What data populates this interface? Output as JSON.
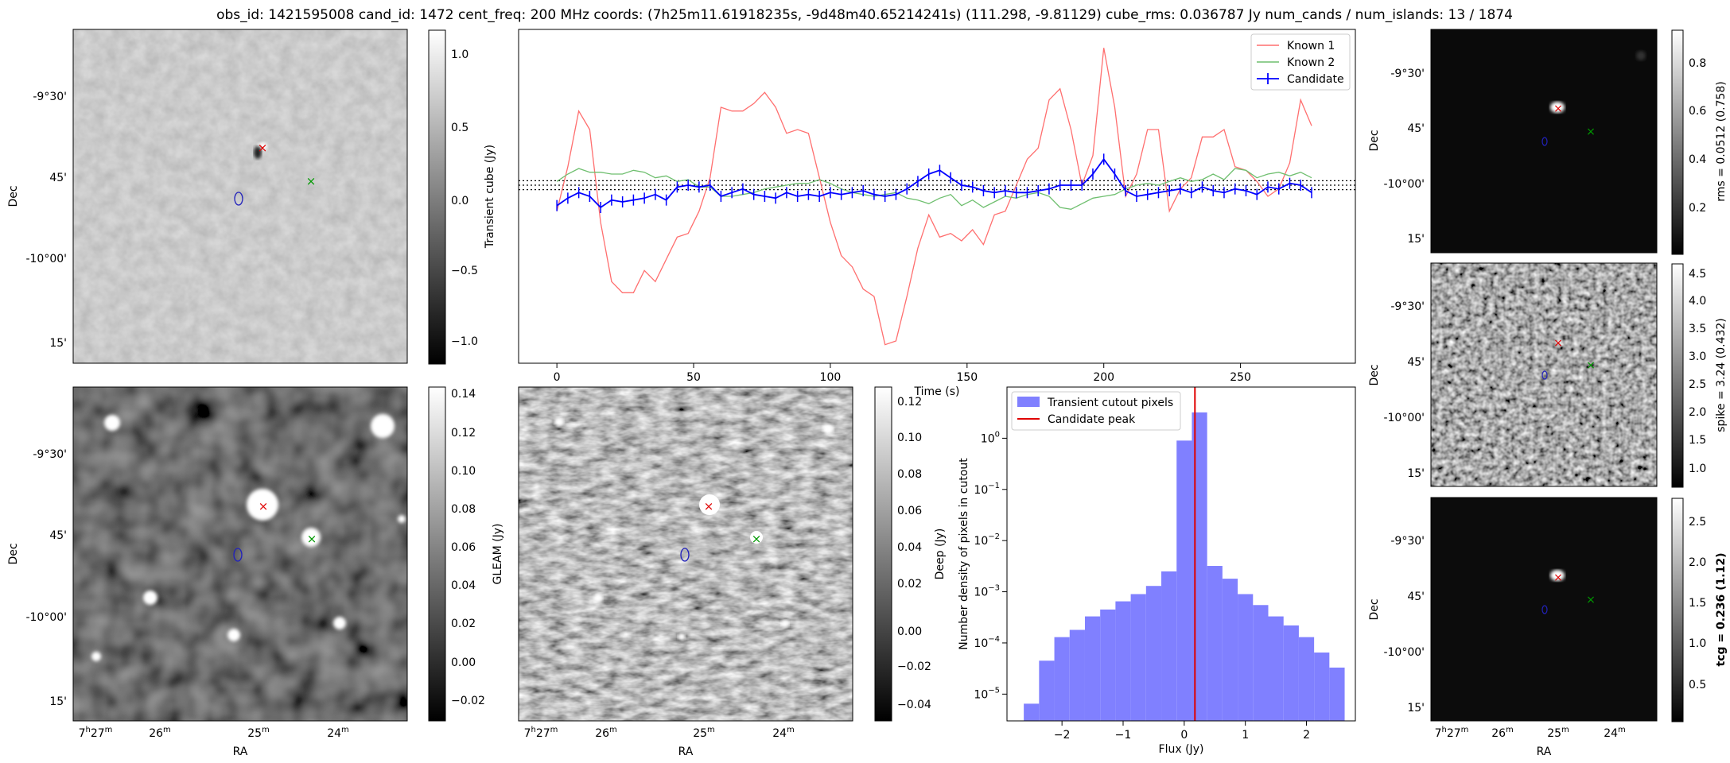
{
  "figure": {
    "title": "obs_id: 1421595008 cand_id: 1472 cent_freq: 200 MHz coords: (7h25m11.61918235s, -9d48m40.65214241s) (111.298, -9.81129) cube_rms: 0.036787 Jy num_cands / num_islands: 13 / 1874"
  },
  "colors": {
    "known1": "#ff6f6f",
    "known2": "#6fbf6f",
    "candidate": "#0000ff",
    "hist_fill": "#8080ff",
    "peak": "#e00000",
    "marker_red": "#e00000",
    "marker_green": "#009900",
    "ellipse_blue": "#2222bb"
  },
  "image_axes": {
    "dec_ticks": [
      "-9°30'",
      "45'",
      "-10°00'",
      "15'"
    ],
    "ra_ticks": [
      "7h27m",
      "26m",
      "25m",
      "24m"
    ],
    "ra_hour_parts": [
      "7",
      "27"
    ],
    "ra_min_part": "m",
    "ylabel": "Dec",
    "xlabel": "RA"
  },
  "panels": {
    "transient": {
      "colorbar_label": "Transient cube (Jy)",
      "colorbar_ticks": [
        "1.0",
        "0.5",
        "0.0",
        "−0.5",
        "−1.0"
      ]
    },
    "gleam": {
      "colorbar_label": "GLEAM (Jy)",
      "colorbar_ticks": [
        "0.14",
        "0.12",
        "0.10",
        "0.08",
        "0.06",
        "0.04",
        "0.02",
        "0.00",
        "−0.02"
      ]
    },
    "deep": {
      "colorbar_label": "Deep (Jy)",
      "colorbar_ticks": [
        "0.12",
        "0.10",
        "0.08",
        "0.06",
        "0.04",
        "0.02",
        "0.00",
        "−0.02",
        "−0.04"
      ]
    },
    "rms": {
      "colorbar_label": "rms = 0.0512 (0.758)",
      "colorbar_ticks": [
        "0.8",
        "0.6",
        "0.4",
        "0.2"
      ]
    },
    "spike": {
      "colorbar_label": "spike = 3.24 (0.432)",
      "colorbar_ticks": [
        "4.5",
        "4.0",
        "3.5",
        "3.0",
        "2.5",
        "2.0",
        "1.5",
        "1.0"
      ]
    },
    "tcg": {
      "colorbar_label": "tcg = 0.236 (1.12)",
      "colorbar_ticks": [
        "2.5",
        "2.0",
        "1.5",
        "1.0",
        "0.5"
      ]
    }
  },
  "chart_data": [
    {
      "type": "line",
      "title": "",
      "xlabel": "Time (s)",
      "ylabel": "",
      "xlim": [
        -14,
        292
      ],
      "ylim": [
        -4.8,
        4.2
      ],
      "xticks": [
        0,
        50,
        100,
        150,
        200,
        250
      ],
      "legend": [
        "Known 1",
        "Known 2",
        "Candidate"
      ],
      "legend_position": "top-right",
      "hlines": [
        0.12,
        0.0,
        -0.12
      ],
      "series": [
        {
          "name": "Known 1",
          "x": [
            0,
            4,
            8,
            12,
            16,
            20,
            24,
            28,
            32,
            36,
            40,
            44,
            48,
            52,
            56,
            60,
            64,
            68,
            72,
            76,
            80,
            84,
            88,
            92,
            96,
            100,
            104,
            108,
            112,
            116,
            120,
            124,
            128,
            132,
            136,
            140,
            144,
            148,
            152,
            156,
            160,
            164,
            168,
            172,
            176,
            180,
            184,
            188,
            192,
            196,
            200,
            204,
            208,
            212,
            216,
            220,
            224,
            228,
            232,
            236,
            240,
            244,
            248,
            252,
            256,
            260,
            264,
            268,
            272,
            276
          ],
          "y": [
            -0.7,
            0.5,
            2.0,
            1.5,
            -1.0,
            -2.6,
            -2.9,
            -2.9,
            -2.3,
            -2.6,
            -2.0,
            -1.4,
            -1.3,
            -0.7,
            0.2,
            2.1,
            2.0,
            2.0,
            2.2,
            2.5,
            2.1,
            1.4,
            1.5,
            1.4,
            0.2,
            -1.0,
            -1.9,
            -2.2,
            -2.8,
            -3.0,
            -4.3,
            -4.2,
            -3.0,
            -1.7,
            -0.8,
            -1.4,
            -1.3,
            -1.5,
            -1.2,
            -1.6,
            -0.8,
            -0.7,
            0.0,
            0.7,
            1.0,
            2.3,
            2.6,
            1.5,
            0.0,
            0.8,
            3.7,
            2.1,
            -0.3,
            0.3,
            1.5,
            1.5,
            -0.7,
            -0.1,
            0.2,
            1.3,
            1.3,
            1.5,
            0.5,
            0.4,
            0.1,
            -0.3,
            -0.1,
            0.6,
            2.3,
            1.6
          ]
        },
        {
          "name": "Known 2",
          "x": [
            0,
            4,
            8,
            12,
            16,
            20,
            24,
            28,
            32,
            36,
            40,
            44,
            48,
            52,
            56,
            60,
            64,
            68,
            72,
            76,
            80,
            84,
            88,
            92,
            96,
            100,
            104,
            108,
            112,
            116,
            120,
            124,
            128,
            132,
            136,
            140,
            144,
            148,
            152,
            156,
            160,
            164,
            168,
            172,
            176,
            180,
            184,
            188,
            192,
            196,
            200,
            204,
            208,
            212,
            216,
            220,
            224,
            228,
            232,
            236,
            240,
            244,
            248,
            252,
            256,
            260,
            264,
            268,
            272,
            276
          ],
          "y": [
            0.1,
            0.3,
            0.45,
            0.35,
            0.35,
            0.3,
            0.3,
            0.4,
            0.35,
            0.2,
            0.25,
            0.1,
            0.15,
            -0.05,
            -0.05,
            -0.3,
            -0.3,
            -0.25,
            -0.2,
            -0.1,
            -0.05,
            0.0,
            0.05,
            0.05,
            0.15,
            0.05,
            -0.1,
            -0.2,
            -0.25,
            -0.3,
            -0.25,
            -0.2,
            -0.35,
            -0.4,
            -0.5,
            -0.35,
            -0.25,
            -0.55,
            -0.4,
            -0.6,
            -0.45,
            -0.3,
            -0.35,
            -0.25,
            -0.2,
            -0.3,
            -0.6,
            -0.65,
            -0.5,
            -0.35,
            -0.3,
            -0.25,
            -0.1,
            0.0,
            0.05,
            0.0,
            0.1,
            0.2,
            0.1,
            0.15,
            0.3,
            0.15,
            0.45,
            0.4,
            0.2,
            0.3,
            0.35,
            0.25,
            0.35,
            0.2
          ]
        },
        {
          "name": "Candidate",
          "x": [
            0,
            4,
            8,
            12,
            16,
            20,
            24,
            28,
            32,
            36,
            40,
            44,
            48,
            52,
            56,
            60,
            64,
            68,
            72,
            76,
            80,
            84,
            88,
            92,
            96,
            100,
            104,
            108,
            112,
            116,
            120,
            124,
            128,
            132,
            136,
            140,
            144,
            148,
            152,
            156,
            160,
            164,
            168,
            172,
            176,
            180,
            184,
            188,
            192,
            196,
            200,
            204,
            208,
            212,
            216,
            220,
            224,
            228,
            232,
            236,
            240,
            244,
            248,
            252,
            256,
            260,
            264,
            268,
            272,
            276
          ],
          "y": [
            -0.55,
            -0.35,
            -0.2,
            -0.3,
            -0.6,
            -0.4,
            -0.45,
            -0.4,
            -0.35,
            -0.25,
            -0.4,
            -0.05,
            -0.0,
            -0.05,
            0.0,
            -0.3,
            -0.2,
            -0.1,
            -0.25,
            -0.3,
            -0.35,
            -0.2,
            -0.3,
            -0.25,
            -0.3,
            -0.2,
            -0.25,
            -0.2,
            -0.15,
            -0.25,
            -0.3,
            -0.25,
            -0.1,
            0.1,
            0.3,
            0.4,
            0.2,
            0.0,
            -0.05,
            -0.15,
            -0.2,
            -0.15,
            -0.2,
            -0.2,
            -0.15,
            -0.1,
            0.0,
            0.0,
            0.0,
            0.3,
            0.7,
            0.3,
            -0.15,
            -0.3,
            -0.25,
            -0.2,
            -0.15,
            -0.1,
            -0.2,
            -0.05,
            -0.15,
            -0.2,
            -0.1,
            -0.15,
            -0.25,
            -0.05,
            -0.1,
            0.05,
            0.0,
            -0.2
          ],
          "yerr": 0.15
        }
      ]
    },
    {
      "type": "histogram",
      "title": "",
      "xlabel": "Flux (Jy)",
      "ylabel": "Number density of pixels in cutout",
      "yscale": "log",
      "xlim": [
        -2.9,
        2.8
      ],
      "ylim": [
        3e-06,
        10
      ],
      "xticks": [
        -2,
        -1,
        0,
        1,
        2
      ],
      "xtick_labels": [
        "−2",
        "−1",
        "0",
        "1",
        "2"
      ],
      "ytick_labels": [
        "10^-5",
        "10^-4",
        "10^-3",
        "10^-2",
        "10^-1",
        "10^0"
      ],
      "legend": [
        "Transient cutout pixels",
        "Candidate peak"
      ],
      "legend_position": "top-left",
      "bin_edges": [
        -2.625,
        -2.375,
        -2.125,
        -1.875,
        -1.625,
        -1.375,
        -1.125,
        -0.875,
        -0.625,
        -0.375,
        -0.125,
        0.125,
        0.375,
        0.625,
        0.875,
        1.125,
        1.375,
        1.625,
        1.875,
        2.125,
        2.375,
        2.625
      ],
      "values": [
        6.5e-06,
        4.5e-05,
        0.00013,
        0.00018,
        0.00033,
        0.00045,
        0.00065,
        0.0009,
        0.0013,
        0.0025,
        0.9,
        3.2,
        0.0032,
        0.0018,
        0.0009,
        0.00055,
        0.00033,
        0.00022,
        0.00013,
        6.5e-05,
        3.3e-05
      ],
      "candidate_peak": 0.175
    }
  ]
}
